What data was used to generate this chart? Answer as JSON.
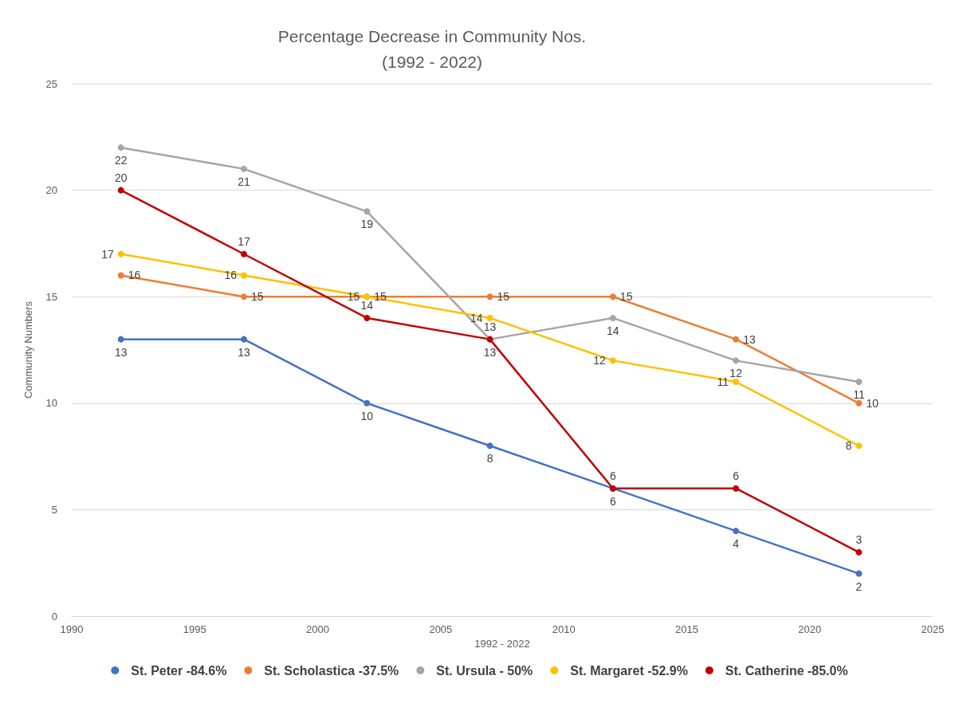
{
  "chart_data": {
    "type": "line",
    "title": "Percentage Decrease in Community Nos.\n(1992 - 2022)",
    "xlabel": "1992 - 2022",
    "ylabel": "Community Numbers",
    "x": [
      1992,
      1997,
      2002,
      2007,
      2012,
      2017,
      2022
    ],
    "series": [
      {
        "name": "St. Peter -84.6%",
        "color": "#4472c4",
        "values": [
          13,
          13,
          10,
          8,
          6,
          4,
          2
        ]
      },
      {
        "name": "St. Scholastica -37.5%",
        "color": "#ed7d31",
        "values": [
          16,
          15,
          15,
          15,
          15,
          13,
          10
        ]
      },
      {
        "name": "St. Ursula - 50%",
        "color": "#a5a5a5",
        "values": [
          22,
          21,
          19,
          13,
          14,
          12,
          11
        ]
      },
      {
        "name": "St. Margaret -52.9%",
        "color": "#ffc000",
        "values": [
          17,
          16,
          15,
          14,
          12,
          11,
          8
        ]
      },
      {
        "name": "St. Catherine -85.0%",
        "color": "#c00000",
        "values": [
          20,
          17,
          14,
          13,
          6,
          6,
          3
        ]
      }
    ],
    "xlim": [
      1990,
      2025
    ],
    "xticks": [
      1990,
      1995,
      2000,
      2005,
      2010,
      2015,
      2020,
      2025
    ],
    "ylim": [
      0,
      25
    ],
    "yticks": [
      0,
      5,
      10,
      15,
      20,
      25
    ],
    "grid": "y",
    "legend": "bottom",
    "marker": "circle",
    "line_style": "solid",
    "data_labels": true
  }
}
